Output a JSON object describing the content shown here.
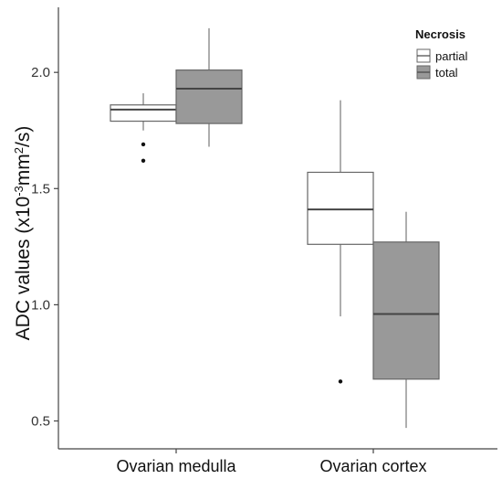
{
  "chart_data": {
    "type": "box",
    "title": "",
    "xlabel": "",
    "ylabel": "ADC values (x10",
    "ylabel_sup1": "-3",
    "ylabel_mid": "mm",
    "ylabel_sup2": "2",
    "ylabel_end": "/s)",
    "ylim": [
      0.38,
      2.28
    ],
    "yticks": [
      0.5,
      1.0,
      1.5,
      2.0
    ],
    "ytick_labels": [
      "0.5",
      "1.0",
      "1.5",
      "2.0"
    ],
    "categories": [
      "Ovarian medulla",
      "Ovarian cortex"
    ],
    "legend": {
      "title": "Necrosis",
      "position": "top-right",
      "entries": [
        "partial",
        "total"
      ]
    },
    "series": [
      {
        "name": "partial",
        "color": "#ffffff",
        "boxes": [
          {
            "min": 1.75,
            "q1": 1.79,
            "median": 1.84,
            "q3": 1.86,
            "max": 1.91,
            "outliers": [
              1.69,
              1.62
            ]
          },
          {
            "min": 0.95,
            "q1": 1.26,
            "median": 1.41,
            "q3": 1.57,
            "max": 1.88,
            "outliers": [
              0.67
            ]
          }
        ]
      },
      {
        "name": "total",
        "color": "#999999",
        "boxes": [
          {
            "min": 1.68,
            "q1": 1.78,
            "median": 1.93,
            "q3": 2.01,
            "max": 2.19,
            "outliers": []
          },
          {
            "min": 0.47,
            "q1": 0.68,
            "median": 0.96,
            "q3": 1.27,
            "max": 1.4,
            "outliers": []
          }
        ]
      }
    ]
  }
}
